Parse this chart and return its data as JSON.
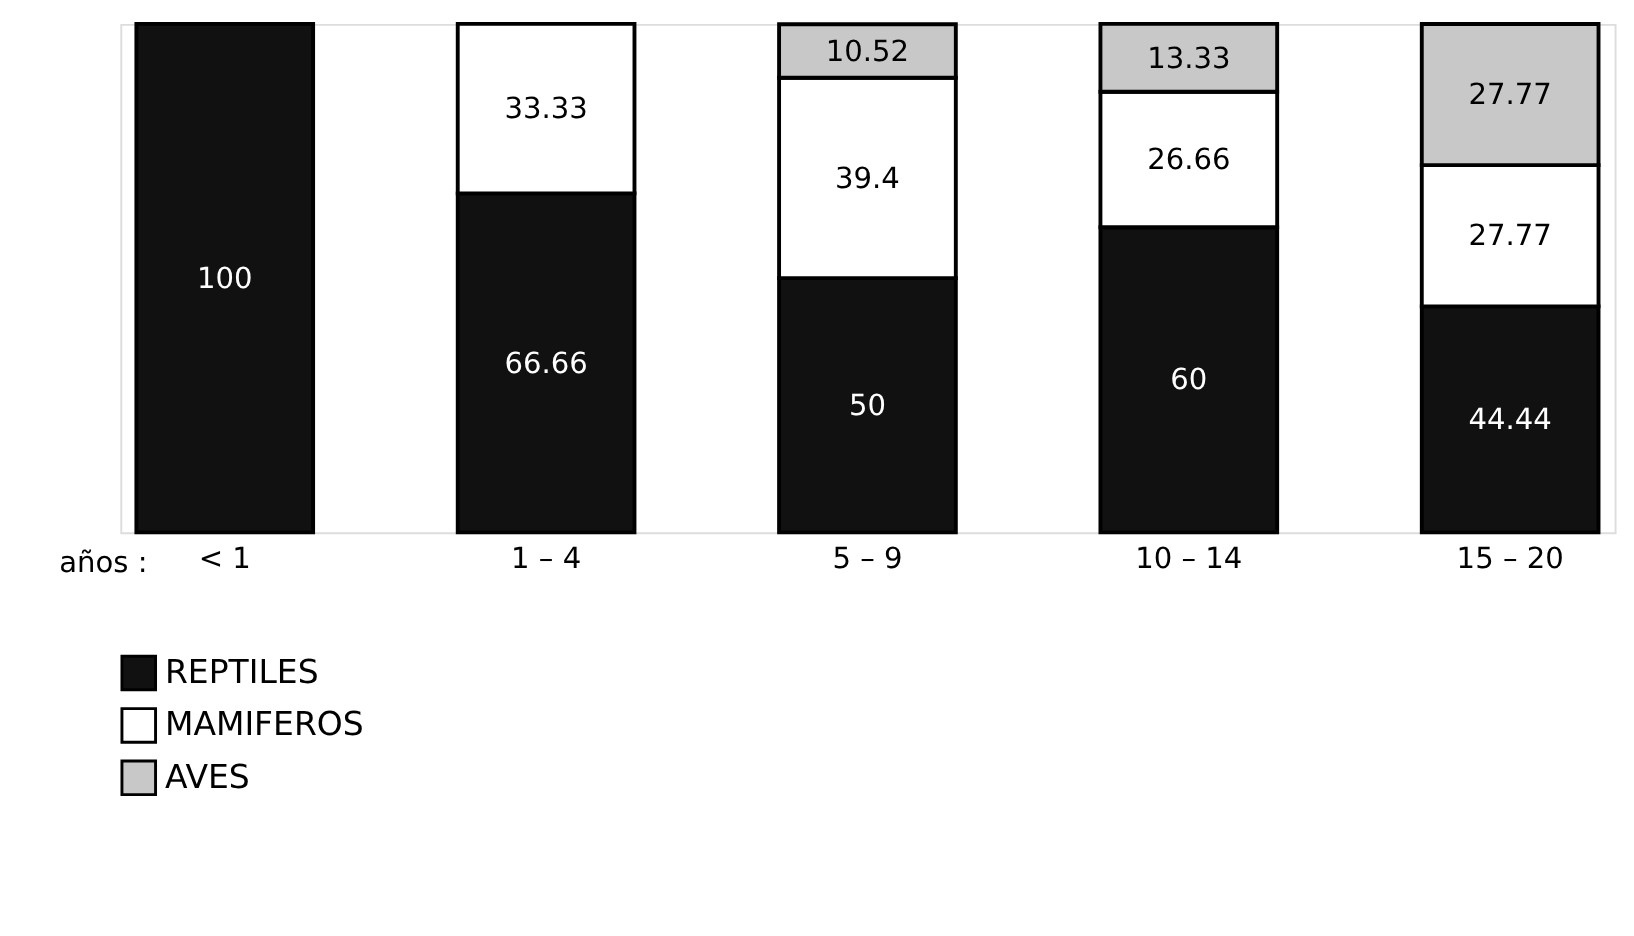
{
  "chart_data": {
    "type": "bar",
    "stacked": true,
    "xlabel": "años :",
    "categories": [
      "< 1",
      "1 – 4",
      "5 – 9",
      "10 – 14",
      "15 – 20"
    ],
    "series": [
      {
        "name": "REPTILES",
        "color": "#111111",
        "values": [
          100,
          66.66,
          50,
          60,
          44.44
        ],
        "value_labels": [
          "100",
          "66.66",
          "50",
          "60",
          "44.44"
        ]
      },
      {
        "name": "MAMIFEROS",
        "color": "#ffffff",
        "values": [
          null,
          33.33,
          39.4,
          26.66,
          27.77
        ],
        "value_labels": [
          null,
          "33.33",
          "39.4",
          "26.66",
          "27.77"
        ]
      },
      {
        "name": "AVES",
        "color": "#c8c8c8",
        "values": [
          null,
          null,
          10.52,
          13.33,
          27.77
        ],
        "value_labels": [
          null,
          null,
          "10.52",
          "13.33",
          "27.77"
        ]
      }
    ],
    "legend": "bottom left"
  }
}
